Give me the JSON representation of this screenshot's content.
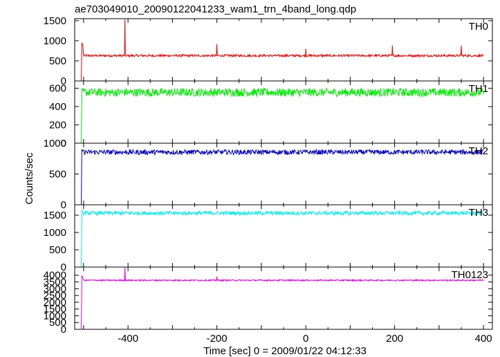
{
  "chart_data": {
    "type": "line",
    "title": "ae703049010_20090122041233_wam1_trn_4band_long.qdp",
    "xlabel": "Time [sec] 0 = 2009/01/22 04:12:33",
    "ylabel": "Counts/sec",
    "xlim": [
      -520,
      420
    ],
    "x_ticks": [
      -400,
      -200,
      0,
      200,
      400
    ],
    "x_start": -505,
    "x_end": 400,
    "grid": false,
    "panels": [
      {
        "name": "TH0",
        "color": "#ff0000",
        "ylim": [
          0,
          1550
        ],
        "y_ticks": [
          0,
          500,
          1000,
          1500
        ],
        "baseline": 630,
        "noise": 28,
        "initial_peak": 940,
        "spikes": [
          [
            -407,
            1530
          ],
          [
            -200,
            920
          ],
          [
            0,
            800
          ],
          [
            195,
            880
          ],
          [
            350,
            880
          ]
        ]
      },
      {
        "name": "TH1",
        "color": "#00ee00",
        "ylim": [
          0,
          680
        ],
        "y_ticks": [
          0,
          200,
          400,
          600
        ],
        "baseline": 555,
        "noise": 45,
        "initial_peak": 600,
        "spikes": []
      },
      {
        "name": "TH2",
        "color": "#0000cc",
        "ylim": [
          0,
          1000
        ],
        "y_ticks": [
          0,
          500,
          1000
        ],
        "baseline": 855,
        "noise": 40,
        "initial_peak": 900,
        "spikes": []
      },
      {
        "name": "TH3",
        "color": "#00f0f0",
        "ylim": [
          0,
          1800
        ],
        "y_ticks": [
          0,
          500,
          1000,
          1500
        ],
        "baseline": 1560,
        "noise": 55,
        "initial_peak": 1650,
        "spikes": []
      },
      {
        "name": "TH0123",
        "color": "#ee00ee",
        "ylim": [
          0,
          4600
        ],
        "y_ticks": [
          0,
          500,
          1000,
          1500,
          2000,
          2500,
          3000,
          3500,
          4000
        ],
        "baseline": 3620,
        "noise": 55,
        "initial_peak": 3950,
        "spikes": [
          [
            -407,
            4600
          ],
          [
            -200,
            3900
          ]
        ]
      }
    ]
  }
}
